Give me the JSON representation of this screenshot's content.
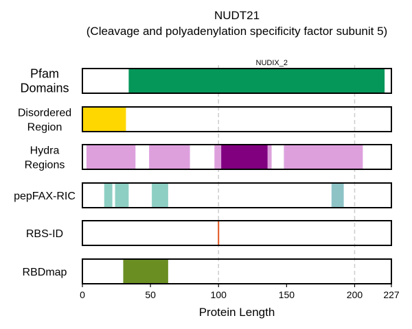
{
  "chart_data": {
    "type": "protein-domain-tracks",
    "title": "NUDT21",
    "subtitle": "(Cleavage and polyadenylation specificity factor subunit 5)",
    "xlabel": "Protein Length",
    "xlim": [
      0,
      227
    ],
    "xticks": [
      0,
      50,
      100,
      150,
      200,
      227
    ],
    "gridlines_at": [
      100,
      200
    ],
    "tracks": [
      {
        "name": "Pfam\nDomains",
        "label_lines": [
          "Pfam",
          "Domains"
        ],
        "segments": [
          {
            "start": 34,
            "end": 222,
            "color": "#059659",
            "label": "NUDIX_2"
          }
        ]
      },
      {
        "name": "Disordered\nRegion",
        "label_lines": [
          "Disordered",
          "Region"
        ],
        "segments": [
          {
            "start": 0,
            "end": 32,
            "color": "#FFD700"
          }
        ]
      },
      {
        "name": "Hydra\nRegions",
        "label_lines": [
          "Hydra",
          "Regions"
        ],
        "segments": [
          {
            "start": 3,
            "end": 39,
            "color": "#DDA0DD"
          },
          {
            "start": 49,
            "end": 79,
            "color": "#DDA0DD"
          },
          {
            "start": 97,
            "end": 139,
            "color": "#DDA0DD"
          },
          {
            "start": 102,
            "end": 136,
            "color": "#800080"
          },
          {
            "start": 148,
            "end": 206,
            "color": "#DDA0DD"
          }
        ]
      },
      {
        "name": "pepFAX-RIC",
        "label_lines": [
          "pepFAX-RIC"
        ],
        "segments": [
          {
            "start": 16,
            "end": 22,
            "color": "#8ECFC3"
          },
          {
            "start": 24,
            "end": 34,
            "color": "#8ECFC3"
          },
          {
            "start": 51,
            "end": 63,
            "color": "#8ECFC3"
          },
          {
            "start": 183,
            "end": 192,
            "color": "#8EC3C6"
          }
        ]
      },
      {
        "name": "RBS-ID",
        "label_lines": [
          "RBS-ID"
        ],
        "segments": [
          {
            "start": 99.5,
            "end": 100.5,
            "color": "#E0521C"
          }
        ]
      },
      {
        "name": "RBDmap",
        "label_lines": [
          "RBDmap"
        ],
        "segments": [
          {
            "start": 30,
            "end": 63,
            "color": "#6B8E23"
          }
        ]
      }
    ]
  }
}
